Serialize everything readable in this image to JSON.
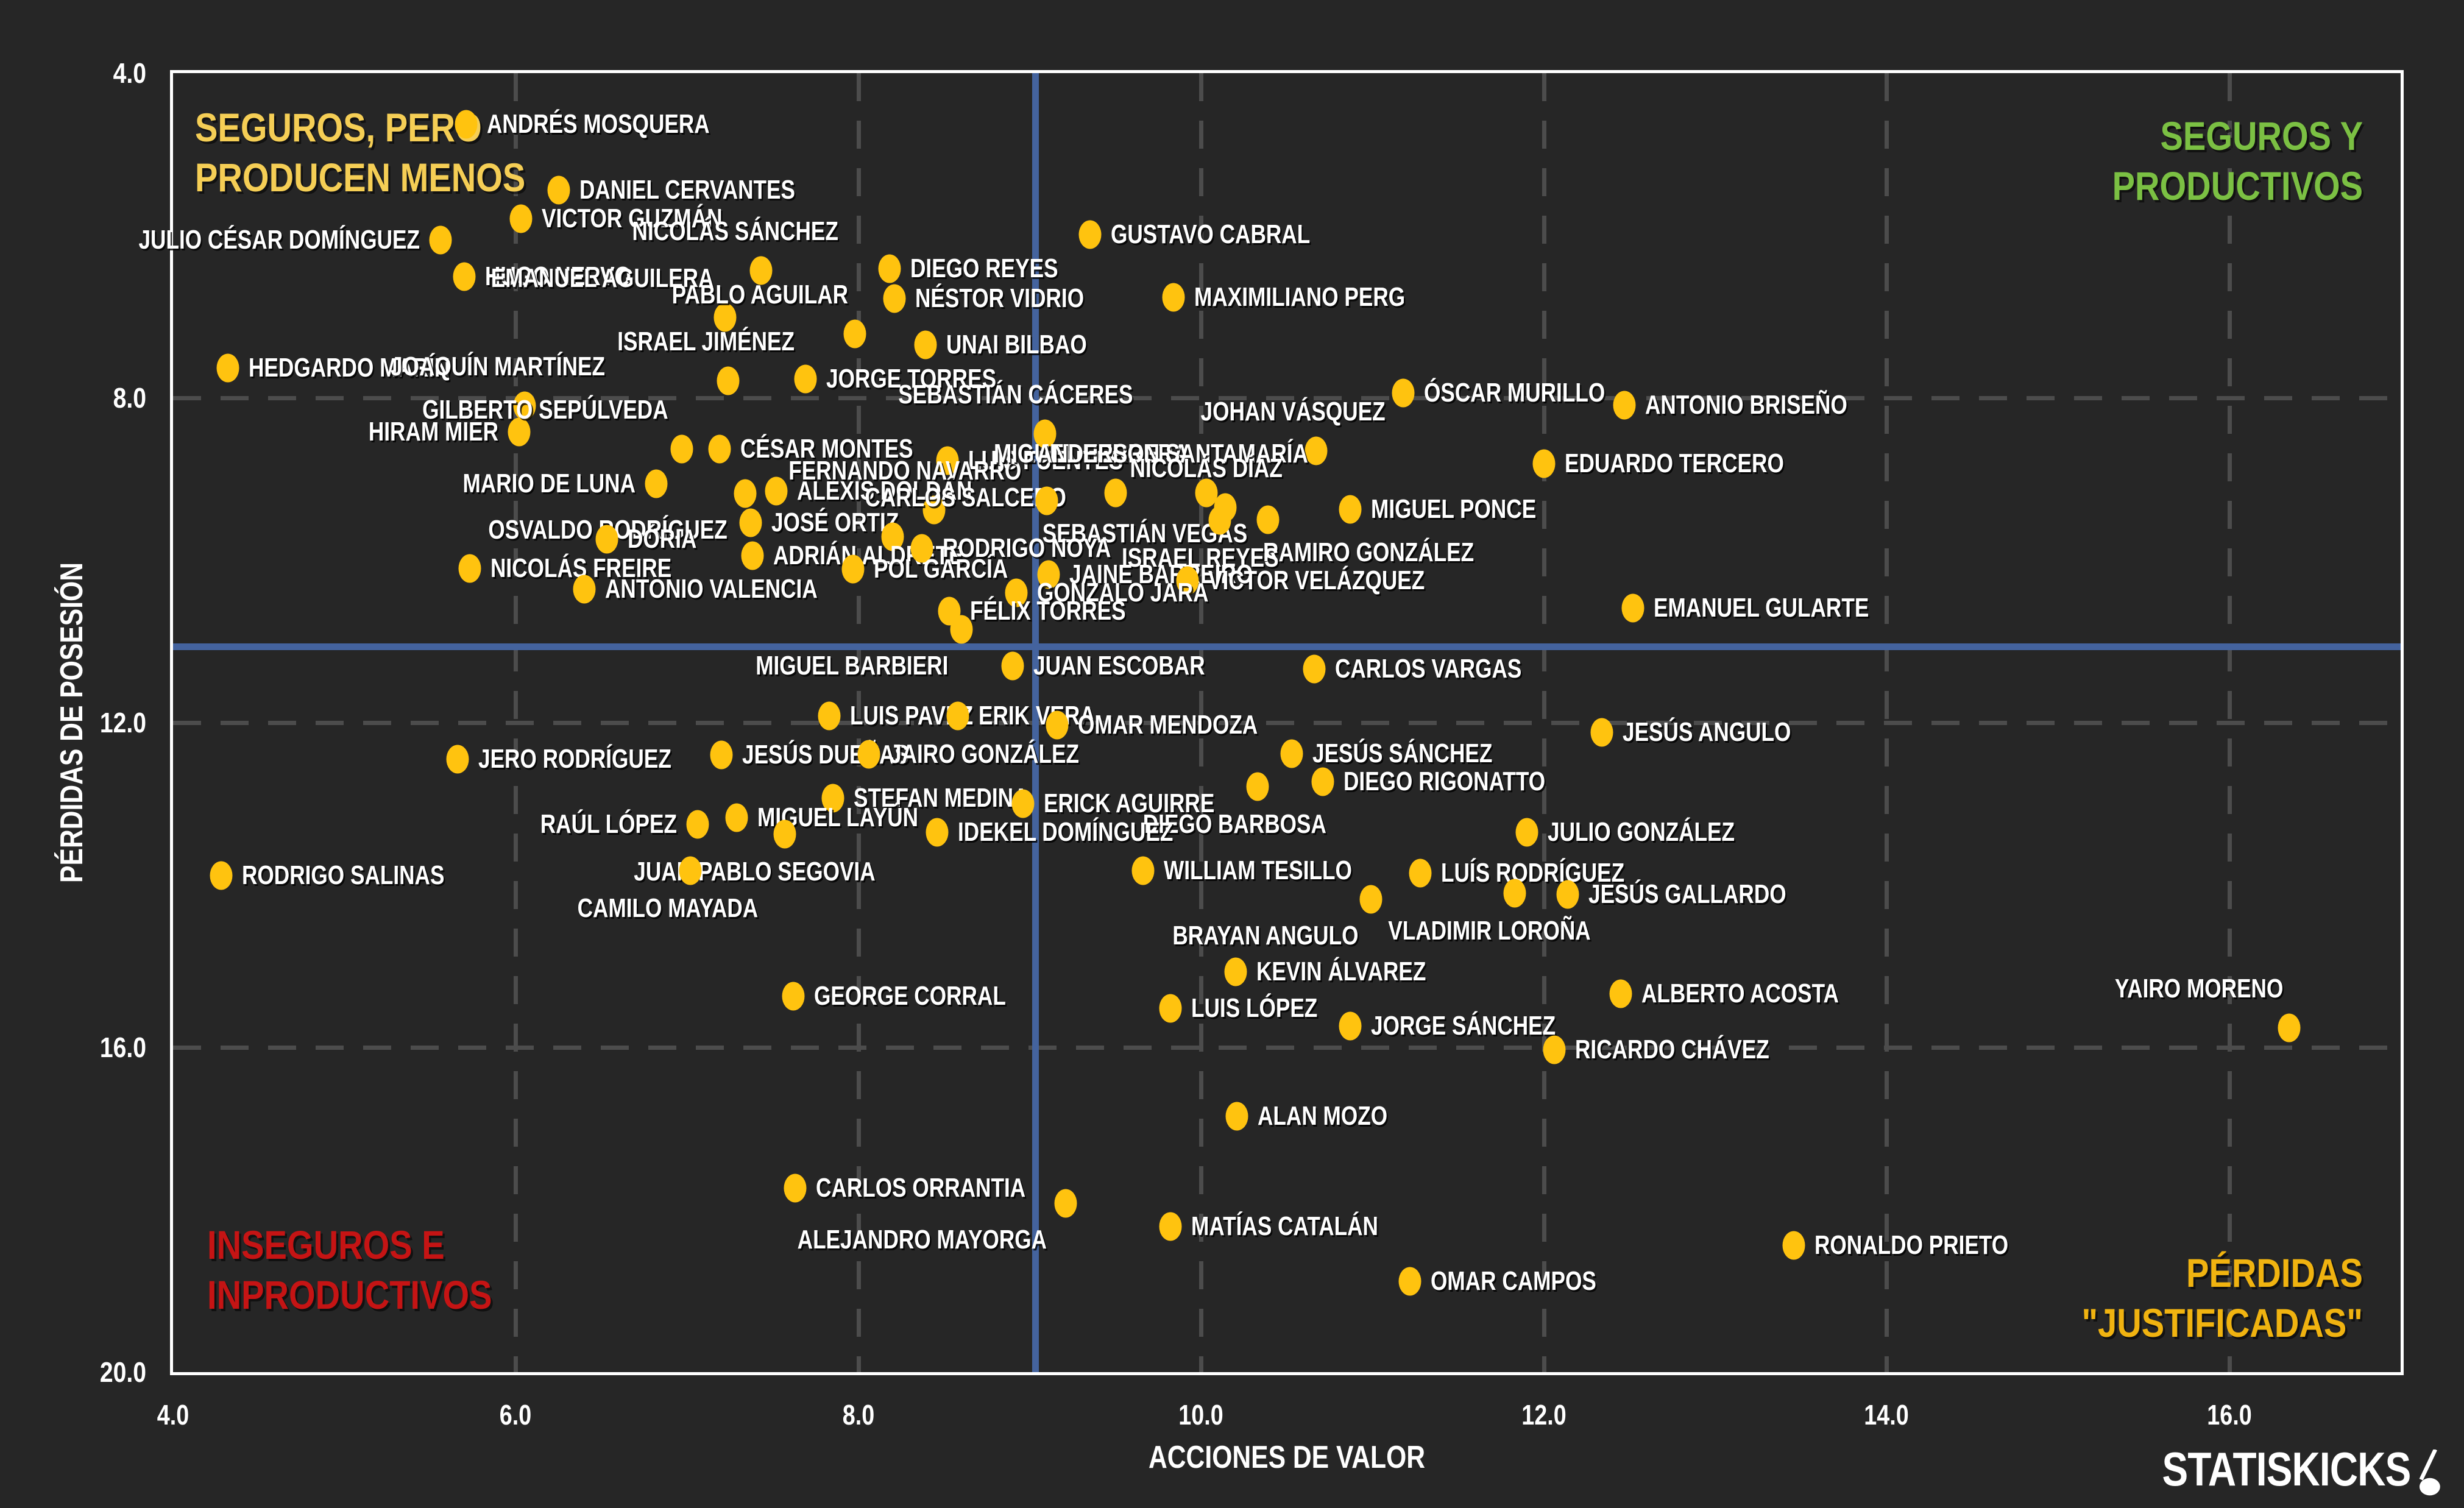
{
  "brand": {
    "name": "STATISKICKS",
    "ball_icon": "ball-on-swoosh-icon",
    "color": "#ffffff"
  },
  "colors": {
    "background": "#262626",
    "plot_border": "#ffffff",
    "gridline": "#4c4c4c",
    "dot": "#ffc30f",
    "crosshair_blue": "#44639e",
    "label_text": "#ffffff",
    "quad_top_left": "#f5ce55",
    "quad_top_right": "#7bc043",
    "quad_bottom_left": "#c51414",
    "quad_bottom_right": "#f0b310"
  },
  "chart_data": {
    "type": "scatter",
    "xlabel": "ACCIONES DE VALOR",
    "ylabel": "PÉRDIDAS DE POSESIÓN",
    "x_range": [
      4.0,
      17.0
    ],
    "y_range": [
      4.0,
      20.0
    ],
    "y_inverted": true,
    "grid": "dashed",
    "x_ticks": [
      4.0,
      6.0,
      8.0,
      10.0,
      12.0,
      14.0,
      16.0
    ],
    "x_tick_labels": [
      "4.0",
      "6.0",
      "8.0",
      "10.0",
      "12.0",
      "14.0",
      "16.0"
    ],
    "y_ticks": [
      4.0,
      8.0,
      12.0,
      16.0,
      20.0
    ],
    "y_tick_labels": [
      "4.0",
      "8.0",
      "12.0",
      "16.0",
      "20.0"
    ],
    "x_gridlines": [
      6.0,
      8.0,
      10.0,
      12.0,
      14.0,
      16.0
    ],
    "y_gridlines": [
      8.0,
      12.0,
      16.0
    ],
    "crosshair": {
      "x": 9.03,
      "y": 11.06
    },
    "quadrant_labels": [
      {
        "corner": "tl",
        "lines": [
          "SEGUROS, PERO",
          "PRODUCEN MENOS"
        ],
        "color": "#f5ce55"
      },
      {
        "corner": "tr",
        "lines": [
          "SEGUROS Y",
          "PRODUCTIVOS"
        ],
        "color": "#7bc043"
      },
      {
        "corner": "bl",
        "lines": [
          "INSEGUROS E",
          "INPRODUCTIVOS"
        ],
        "color": "#c51414"
      },
      {
        "corner": "br",
        "lines": [
          "PÉRDIDAS",
          "\"JUSTIFICADAS\""
        ],
        "color": "#f0b310"
      }
    ],
    "points": [
      {
        "name": "ANDRÉS MOSQUERA",
        "x": 5.71,
        "y": 4.63,
        "side": "r"
      },
      {
        "name": "DANIEL CERVANTES",
        "x": 6.25,
        "y": 5.44,
        "side": "r"
      },
      {
        "name": "VICTOR GUZMÁN",
        "x": 6.03,
        "y": 5.79,
        "side": "r"
      },
      {
        "name": "JULIO CÉSAR DOMÍNGUEZ",
        "x": 5.56,
        "y": 6.06,
        "side": "l"
      },
      {
        "name": "GUSTAVO CABRAL",
        "x": 9.35,
        "y": 5.99,
        "side": "r"
      },
      {
        "name": "HUGO NERVO",
        "x": 5.7,
        "y": 6.51,
        "side": "r"
      },
      {
        "name": "NICOLÁS SÁNCHEZ",
        "x": 7.43,
        "y": 6.43,
        "side": "a"
      },
      {
        "name": "DIEGO REYES",
        "x": 8.18,
        "y": 6.41,
        "side": "r"
      },
      {
        "name": "MAXIMILIANO PERG",
        "x": 9.84,
        "y": 6.76,
        "side": "r"
      },
      {
        "name": "NÉSTOR VIDRIO",
        "x": 8.21,
        "y": 6.78,
        "side": "r"
      },
      {
        "name": "EMANUEL AGUILERA",
        "x": 7.22,
        "y": 7.01,
        "side": "al"
      },
      {
        "name": "PABLO AGUILAR",
        "x": 7.98,
        "y": 7.21,
        "side": "al"
      },
      {
        "name": "UNAI BILBAO",
        "x": 8.39,
        "y": 7.35,
        "side": "r"
      },
      {
        "name": "HEDGARDO MARÍN",
        "x": 4.32,
        "y": 7.63,
        "side": "r"
      },
      {
        "name": "ISRAEL JIMÉNEZ",
        "x": 7.24,
        "y": 7.79,
        "side": "a"
      },
      {
        "name": "JORGE TORRES",
        "x": 7.69,
        "y": 7.77,
        "side": "r"
      },
      {
        "name": "JOAQUÍN MARTÍNEZ",
        "x": 6.05,
        "y": 8.1,
        "side": "a"
      },
      {
        "name": "HIRAM MIER",
        "x": 6.02,
        "y": 8.42,
        "side": "l"
      },
      {
        "name": "GILBERTO SEPÚLVEDA",
        "x": 6.97,
        "y": 8.63,
        "side": "al"
      },
      {
        "name": "CÉSAR MONTES",
        "x": 7.19,
        "y": 8.63,
        "side": "r"
      },
      {
        "name": "ÓSCAR MURILLO",
        "x": 11.18,
        "y": 7.94,
        "side": "r"
      },
      {
        "name": "ANTONIO BRISEÑO",
        "x": 12.47,
        "y": 8.09,
        "side": "r"
      },
      {
        "name": "JOHAN VÁSQUEZ",
        "x": 10.67,
        "y": 8.65,
        "side": "a"
      },
      {
        "name": "SEBASTIÁN CÁCERES",
        "x": 9.09,
        "y": 8.44,
        "side": "a"
      },
      {
        "name": "EDUARDO TERCERO",
        "x": 12.0,
        "y": 8.81,
        "side": "r"
      },
      {
        "name": "LUIS FUENTES",
        "x": 8.52,
        "y": 8.77,
        "side": "r"
      },
      {
        "name": "FERNANDO NAVARRO",
        "x": 8.44,
        "y": 9.38,
        "side": "a"
      },
      {
        "name": "MIGUEL HERRERA",
        "x": 9.5,
        "y": 9.17,
        "side": "a"
      },
      {
        "name": "ANDERSON SANTAMARÍA",
        "x": 10.03,
        "y": 9.17,
        "side": "a"
      },
      {
        "name": "NICOLÁS DÍAZ",
        "x": 10.14,
        "y": 9.35,
        "side": "a"
      },
      {
        "name": "MARIO DE LUNA",
        "x": 6.82,
        "y": 9.06,
        "side": "l"
      },
      {
        "name": "OSVALDO RODRÍGUEZ",
        "x": 7.34,
        "y": 9.18,
        "side": "bl"
      },
      {
        "name": "ALEXIS DOLDÁN",
        "x": 7.52,
        "y": 9.15,
        "side": "r"
      },
      {
        "name": "JOSÉ ORTIZ",
        "x": 7.37,
        "y": 9.54,
        "side": "r"
      },
      {
        "name": "CARLOS SALCEDO",
        "x": 8.2,
        "y": 9.71,
        "side": "ar"
      },
      {
        "name": "SEBASTIÁN VEGAS",
        "x": 9.1,
        "y": 9.27,
        "side": "br"
      },
      {
        "name": "MIGUEL PONCE",
        "x": 10.87,
        "y": 9.37,
        "side": "r"
      },
      {
        "name": "RAMIRO GONZÁLEZ",
        "x": 10.39,
        "y": 9.5,
        "side": "br"
      },
      {
        "name": "ISRAEL REYES",
        "x": 10.11,
        "y": 9.51,
        "side": "b"
      },
      {
        "name": "DÓRIA",
        "x": 6.53,
        "y": 9.74,
        "side": "r"
      },
      {
        "name": "ADRIÁN ALDRETE",
        "x": 7.38,
        "y": 9.94,
        "side": "r"
      },
      {
        "name": "RODRIGO NOYA",
        "x": 8.37,
        "y": 9.85,
        "side": "r"
      },
      {
        "name": "NICOLÁS FREIRE",
        "x": 5.73,
        "y": 10.1,
        "side": "r"
      },
      {
        "name": "POL GARCÍA",
        "x": 7.97,
        "y": 10.11,
        "side": "r"
      },
      {
        "name": "JAINE BARREIRO",
        "x": 9.11,
        "y": 10.18,
        "side": "r"
      },
      {
        "name": "VÍCTOR VELÁZQUEZ",
        "x": 9.92,
        "y": 10.25,
        "side": "r"
      },
      {
        "name": "ANTONIO VALENCIA",
        "x": 6.4,
        "y": 10.36,
        "side": "r"
      },
      {
        "name": "GONZALO JARA",
        "x": 8.92,
        "y": 10.4,
        "side": "r"
      },
      {
        "name": "EMANUEL GULARTE",
        "x": 12.52,
        "y": 10.59,
        "side": "r"
      },
      {
        "name": "FÉLIX TORRES",
        "x": 8.53,
        "y": 10.63,
        "side": "r"
      },
      {
        "name": "MIGUEL BARBIERI",
        "x": 8.6,
        "y": 10.85,
        "side": "bl"
      },
      {
        "name": "JUAN ESCOBAR",
        "x": 8.9,
        "y": 11.3,
        "side": "r"
      },
      {
        "name": "CARLOS VARGAS",
        "x": 10.66,
        "y": 11.34,
        "side": "r"
      },
      {
        "name": "LUIS PAVEZ",
        "x": 7.83,
        "y": 11.92,
        "side": "r"
      },
      {
        "name": "ERIK VERA",
        "x": 8.58,
        "y": 11.92,
        "side": "r"
      },
      {
        "name": "OMAR MENDOZA",
        "x": 9.16,
        "y": 12.03,
        "side": "r"
      },
      {
        "name": "JESÚS ANGULO",
        "x": 12.34,
        "y": 12.12,
        "side": "r"
      },
      {
        "name": "JERO RODRÍGUEZ",
        "x": 5.66,
        "y": 12.45,
        "side": "r"
      },
      {
        "name": "JESÚS DUEÑAS",
        "x": 7.2,
        "y": 12.4,
        "side": "r"
      },
      {
        "name": "JAIRO GONZÁLEZ",
        "x": 8.06,
        "y": 12.39,
        "side": "r"
      },
      {
        "name": "JESÚS SÁNCHEZ",
        "x": 10.53,
        "y": 12.38,
        "side": "r"
      },
      {
        "name": "DIEGO RIGONATTO",
        "x": 10.71,
        "y": 12.73,
        "side": "r"
      },
      {
        "name": "DIEGO BARBOSA",
        "x": 10.33,
        "y": 12.79,
        "side": "b"
      },
      {
        "name": "STEFAN MEDINA",
        "x": 7.85,
        "y": 12.93,
        "side": "r"
      },
      {
        "name": "ERICK AGUIRRE",
        "x": 8.96,
        "y": 13.0,
        "side": "r"
      },
      {
        "name": "RAÚL LÓPEZ",
        "x": 7.06,
        "y": 13.25,
        "side": "l"
      },
      {
        "name": "MIGUEL LAYÚN",
        "x": 7.29,
        "y": 13.17,
        "side": "r"
      },
      {
        "name": "IDEKEL DOMÍNGUEZ",
        "x": 8.46,
        "y": 13.35,
        "side": "r"
      },
      {
        "name": "JULIO GONZÁLEZ",
        "x": 11.9,
        "y": 13.35,
        "side": "r"
      },
      {
        "name": "JUAN PABLO SEGOVIA",
        "x": 7.57,
        "y": 13.37,
        "side": "b"
      },
      {
        "name": "WILLIAM TESILLO",
        "x": 9.66,
        "y": 13.82,
        "side": "r"
      },
      {
        "name": "LUÍS RODRÍGUEZ",
        "x": 11.28,
        "y": 13.85,
        "side": "r"
      },
      {
        "name": "RODRIGO SALINAS",
        "x": 4.28,
        "y": 13.88,
        "side": "r"
      },
      {
        "name": "CAMILO MAYADA",
        "x": 7.02,
        "y": 13.82,
        "side": "b"
      },
      {
        "name": "BRAYAN ANGULO",
        "x": 10.99,
        "y": 14.18,
        "side": "bl"
      },
      {
        "name": "VLADIMIR LOROÑA",
        "x": 11.83,
        "y": 14.1,
        "side": "b"
      },
      {
        "name": "JESÚS GALLARDO",
        "x": 12.14,
        "y": 14.12,
        "side": "r"
      },
      {
        "name": "KEVIN ÁLVAREZ",
        "x": 10.2,
        "y": 15.07,
        "side": "r"
      },
      {
        "name": "GEORGE CORRAL",
        "x": 7.62,
        "y": 15.37,
        "side": "r"
      },
      {
        "name": "ALBERTO ACOSTA",
        "x": 12.45,
        "y": 15.34,
        "side": "r"
      },
      {
        "name": "LUIS LÓPEZ",
        "x": 9.82,
        "y": 15.52,
        "side": "r"
      },
      {
        "name": "JORGE SÁNCHEZ",
        "x": 10.87,
        "y": 15.74,
        "side": "r"
      },
      {
        "name": "YAIRO MORENO",
        "x": 16.35,
        "y": 15.76,
        "side": "al"
      },
      {
        "name": "RICARDO CHÁVEZ",
        "x": 12.06,
        "y": 16.03,
        "side": "r"
      },
      {
        "name": "ALAN MOZO",
        "x": 10.21,
        "y": 16.85,
        "side": "r"
      },
      {
        "name": "CARLOS ORRANTIA",
        "x": 7.63,
        "y": 17.73,
        "side": "r"
      },
      {
        "name": "ALEJANDRO MAYORGA",
        "x": 9.21,
        "y": 17.92,
        "side": "bl"
      },
      {
        "name": "MATÍAS CATALÁN",
        "x": 9.82,
        "y": 18.21,
        "side": "r"
      },
      {
        "name": "RONALDO PRIETO",
        "x": 13.46,
        "y": 18.44,
        "side": "r"
      },
      {
        "name": "OMAR CAMPOS",
        "x": 11.22,
        "y": 18.88,
        "side": "r"
      }
    ]
  }
}
